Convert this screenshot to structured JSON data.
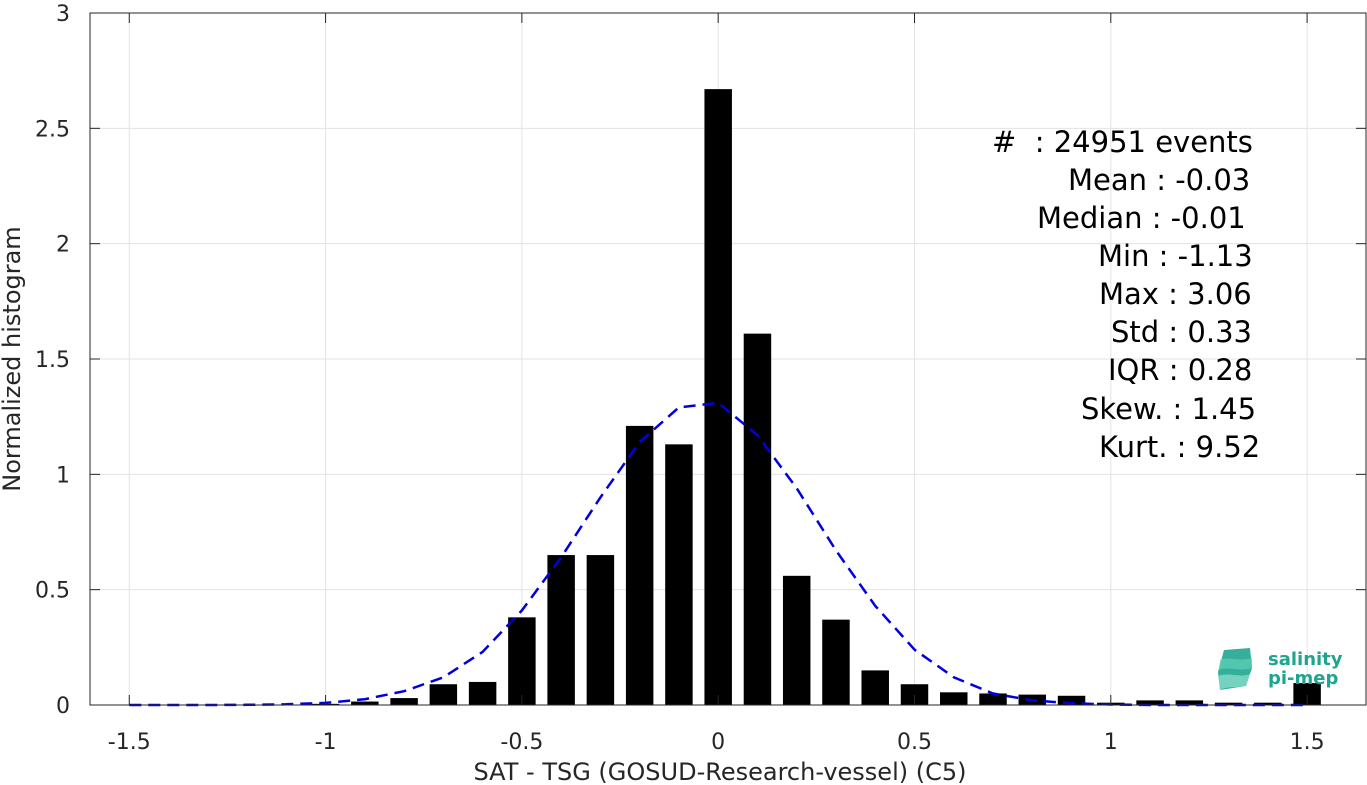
{
  "chart_data": {
    "type": "bar",
    "xlabel": "SAT - TSG (GOSUD-Research-vessel) (C5)",
    "ylabel": "Normalized histogram",
    "xlim": [
      -1.6,
      1.65
    ],
    "ylim": [
      0,
      3
    ],
    "xticks": [
      -1.5,
      -1,
      -0.5,
      0,
      0.5,
      1,
      1.5
    ],
    "xtick_labels": [
      "-1.5",
      "-1",
      "-0.5",
      "0",
      "0.5",
      "1",
      "1.5"
    ],
    "yticks": [
      0,
      0.5,
      1,
      1.5,
      2,
      2.5,
      3
    ],
    "ytick_labels": [
      "0",
      "0.5",
      "1",
      "1.5",
      "2",
      "2.5",
      "3"
    ],
    "grid": true,
    "bar_color": "#000000",
    "bar_width": 0.07,
    "bars": {
      "x": [
        -1.5,
        -1.4,
        -1.3,
        -1.2,
        -1.1,
        -1.0,
        -0.9,
        -0.8,
        -0.7,
        -0.6,
        -0.5,
        -0.4,
        -0.3,
        -0.2,
        -0.1,
        0.0,
        0.1,
        0.2,
        0.3,
        0.4,
        0.5,
        0.6,
        0.7,
        0.8,
        0.9,
        1.0,
        1.1,
        1.2,
        1.3,
        1.4,
        1.5
      ],
      "values": [
        0,
        0,
        0,
        0,
        0,
        0.005,
        0.015,
        0.03,
        0.09,
        0.1,
        0.38,
        0.65,
        0.65,
        1.21,
        1.13,
        2.67,
        1.61,
        0.56,
        0.37,
        0.15,
        0.09,
        0.055,
        0.05,
        0.045,
        0.04,
        0.01,
        0.02,
        0.02,
        0.01,
        0.01,
        0.095
      ]
    },
    "fit": {
      "style": "dashed",
      "color": "#0000dd",
      "x": [
        -1.5,
        -1.4,
        -1.3,
        -1.2,
        -1.1,
        -1.0,
        -0.9,
        -0.8,
        -0.7,
        -0.6,
        -0.5,
        -0.4,
        -0.3,
        -0.2,
        -0.1,
        0.0,
        0.1,
        0.2,
        0.3,
        0.4,
        0.5,
        0.6,
        0.7,
        0.8,
        0.9,
        1.0,
        1.1,
        1.2,
        1.3,
        1.4,
        1.5
      ],
      "y": [
        0,
        0,
        0,
        0.001,
        0.003,
        0.009,
        0.025,
        0.06,
        0.12,
        0.23,
        0.41,
        0.64,
        0.9,
        1.14,
        1.29,
        1.31,
        1.17,
        0.94,
        0.67,
        0.43,
        0.24,
        0.12,
        0.05,
        0.02,
        0.008,
        0.002,
        0,
        0,
        0,
        0,
        0
      ]
    }
  },
  "stats": {
    "events": "#  : 24951 events",
    "mean": "Mean : -0.03",
    "median": "Median : -0.01",
    "min": "Min : -1.13",
    "max": "Max : 3.06",
    "std": "Std : 0.33",
    "iqr": "IQR : 0.28",
    "skew": "Skew. : 1.45",
    "kurt": "Kurt. : 9.52"
  },
  "logo": {
    "line1": "salinity",
    "line2": "pi-mep",
    "color": "#1fa58f"
  }
}
